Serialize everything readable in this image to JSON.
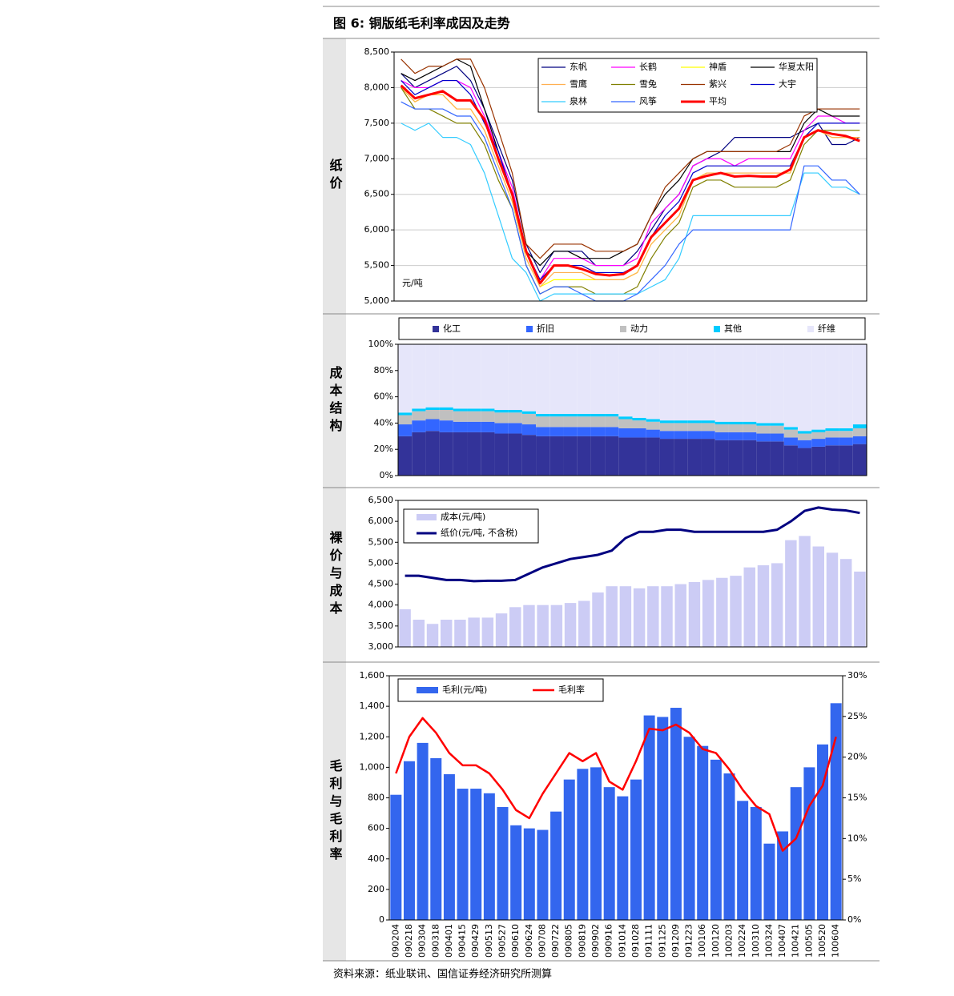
{
  "header": {
    "title": "图 6: 铜版纸毛利率成因及走势"
  },
  "chart_data": [
    {
      "type": "line",
      "title": "纸价",
      "y_label": "元/吨",
      "grid": true,
      "ylim": [
        5000,
        8500
      ],
      "yticks": [
        {
          "value": 5000,
          "label": "5,000"
        },
        {
          "value": 5500,
          "label": "5,500"
        },
        {
          "value": 6000,
          "label": "6,000"
        },
        {
          "value": 6500,
          "label": "6,500"
        },
        {
          "value": 7000,
          "label": "7,000"
        },
        {
          "value": 7500,
          "label": "7,500"
        },
        {
          "value": 8000,
          "label": "8,000"
        },
        {
          "value": 8500,
          "label": "8,500"
        }
      ],
      "series": [
        {
          "name": "东帆",
          "color": "#000080",
          "values": [
            8200,
            8000,
            8100,
            8200,
            8300,
            8100,
            7700,
            7200,
            6700,
            5800,
            5400,
            5700,
            5700,
            5700,
            5500,
            5500,
            5500,
            5700,
            6000,
            6300,
            6500,
            6900,
            7000,
            7100,
            7300,
            7300,
            7300,
            7300,
            7300,
            7400,
            7500,
            7200,
            7200,
            7300
          ]
        },
        {
          "name": "长鹤",
          "color": "#ff00ff",
          "values": [
            8100,
            8000,
            8000,
            8100,
            8100,
            8000,
            7600,
            7100,
            6600,
            5700,
            5300,
            5600,
            5600,
            5600,
            5500,
            5500,
            5500,
            5600,
            6100,
            6300,
            6500,
            6900,
            7000,
            7000,
            6900,
            7000,
            7000,
            7000,
            7000,
            7400,
            7600,
            7600,
            7500,
            7500
          ]
        },
        {
          "name": "神盾",
          "color": "#ffff00",
          "values": [
            8000,
            7800,
            7900,
            7900,
            7700,
            7700,
            7400,
            6900,
            6400,
            5600,
            5200,
            5300,
            5300,
            5300,
            5300,
            5300,
            5300,
            5400,
            5800,
            6000,
            6200,
            6700,
            6800,
            6800,
            6800,
            6800,
            6800,
            6800,
            6800,
            7300,
            7400,
            7300,
            7300,
            7300
          ]
        },
        {
          "name": "华夏太阳",
          "color": "#000000",
          "values": [
            8200,
            8100,
            8200,
            8300,
            8400,
            8300,
            7700,
            7100,
            6500,
            5700,
            5500,
            5700,
            5700,
            5600,
            5600,
            5600,
            5700,
            5800,
            6200,
            6500,
            6700,
            7000,
            7100,
            7100,
            7100,
            7100,
            7100,
            7100,
            7100,
            7500,
            7700,
            7600,
            7600,
            7600
          ]
        },
        {
          "name": "雪鹰",
          "color": "#ffb050",
          "values": [
            8000,
            7800,
            7900,
            7900,
            7700,
            7700,
            7400,
            6900,
            6400,
            5600,
            5200,
            5400,
            5400,
            5400,
            5300,
            5300,
            5300,
            5400,
            5800,
            6000,
            6200,
            6700,
            6800,
            6800,
            6800,
            6800,
            6800,
            6800,
            6800,
            7300,
            7400,
            7300,
            7300,
            7300
          ]
        },
        {
          "name": "雪兔",
          "color": "#808000",
          "values": [
            8000,
            7700,
            7700,
            7600,
            7500,
            7500,
            7200,
            6700,
            6300,
            5500,
            5100,
            5200,
            5200,
            5200,
            5100,
            5100,
            5100,
            5200,
            5600,
            5900,
            6100,
            6600,
            6700,
            6700,
            6600,
            6600,
            6600,
            6600,
            6700,
            7200,
            7400,
            7400,
            7400,
            7400
          ]
        },
        {
          "name": "紫兴",
          "color": "#993300",
          "values": [
            8400,
            8200,
            8300,
            8300,
            8400,
            8400,
            8000,
            7400,
            6800,
            5800,
            5600,
            5800,
            5800,
            5800,
            5700,
            5700,
            5700,
            5800,
            6200,
            6600,
            6800,
            7000,
            7100,
            7100,
            7100,
            7100,
            7100,
            7100,
            7200,
            7600,
            7700,
            7700,
            7700,
            7700
          ]
        },
        {
          "name": "大宇",
          "color": "#0000cc",
          "values": [
            8100,
            7900,
            8000,
            8100,
            8100,
            7900,
            7500,
            7100,
            6500,
            5700,
            5300,
            5500,
            5500,
            5500,
            5400,
            5400,
            5400,
            5500,
            5900,
            6200,
            6400,
            6800,
            6900,
            6900,
            6900,
            6900,
            6900,
            6900,
            6900,
            7300,
            7500,
            7500,
            7500,
            7500
          ]
        },
        {
          "name": "泉林",
          "color": "#33ccff",
          "values": [
            7500,
            7400,
            7500,
            7300,
            7300,
            7200,
            6800,
            6200,
            5600,
            5400,
            5000,
            5100,
            5100,
            5100,
            5100,
            5100,
            5100,
            5100,
            5200,
            5300,
            5600,
            6200,
            6200,
            6200,
            6200,
            6200,
            6200,
            6200,
            6200,
            6800,
            6800,
            6600,
            6600,
            6500
          ]
        },
        {
          "name": "风筝",
          "color": "#3366ff",
          "values": [
            7800,
            7700,
            7700,
            7700,
            7600,
            7600,
            7300,
            6800,
            6300,
            5500,
            5100,
            5200,
            5200,
            5100,
            5000,
            5000,
            5000,
            5100,
            5300,
            5500,
            5800,
            6000,
            6000,
            6000,
            6000,
            6000,
            6000,
            6000,
            6000,
            6900,
            6900,
            6700,
            6700,
            6500
          ]
        },
        {
          "name": "平均",
          "color": "#ff0000",
          "width": 3,
          "values": [
            8030,
            7850,
            7900,
            7950,
            7820,
            7820,
            7550,
            7000,
            6500,
            5700,
            5250,
            5500,
            5500,
            5450,
            5380,
            5360,
            5380,
            5500,
            5900,
            6100,
            6300,
            6700,
            6760,
            6800,
            6750,
            6760,
            6750,
            6750,
            6850,
            7300,
            7400,
            7350,
            7320,
            7250
          ]
        }
      ]
    },
    {
      "type": "stacked_bar",
      "title": "成本结构",
      "ylim": [
        0,
        100
      ],
      "yticks": [
        {
          "value": 0,
          "label": "0%"
        },
        {
          "value": 20,
          "label": "20%"
        },
        {
          "value": 40,
          "label": "40%"
        },
        {
          "value": 60,
          "label": "60%"
        },
        {
          "value": 80,
          "label": "80%"
        },
        {
          "value": 100,
          "label": "100%"
        }
      ],
      "series": [
        {
          "name": "化工",
          "color": "#333399",
          "values": [
            30,
            33,
            34,
            33,
            33,
            33,
            33,
            32,
            32,
            31,
            30,
            30,
            30,
            30,
            30,
            30,
            29,
            29,
            29,
            28,
            28,
            28,
            28,
            27,
            27,
            27,
            26,
            26,
            23,
            21,
            22,
            23,
            23,
            24
          ]
        },
        {
          "name": "折旧",
          "color": "#3366ff",
          "values": [
            9,
            9,
            9,
            9,
            8,
            8,
            8,
            8,
            8,
            8,
            7,
            7,
            7,
            7,
            7,
            7,
            7,
            7,
            6,
            6,
            6,
            6,
            6,
            6,
            6,
            6,
            6,
            6,
            6,
            6,
            6,
            6,
            6,
            6
          ]
        },
        {
          "name": "动力",
          "color": "#c0c0c0",
          "values": [
            7,
            7,
            7,
            8,
            8,
            8,
            8,
            8,
            8,
            8,
            8,
            8,
            8,
            8,
            8,
            8,
            7,
            6,
            6,
            6,
            6,
            6,
            6,
            6,
            6,
            6,
            6,
            6,
            6,
            5,
            5,
            5,
            5,
            6
          ]
        },
        {
          "name": "其他",
          "color": "#00ccff",
          "values": [
            2,
            2,
            2,
            2,
            2,
            2,
            2,
            2,
            2,
            2,
            2,
            2,
            2,
            2,
            2,
            2,
            2,
            2,
            2,
            2,
            2,
            2,
            2,
            2,
            2,
            2,
            2,
            2,
            2,
            2,
            2,
            2,
            2,
            3
          ]
        },
        {
          "name": "纤维",
          "color": "#e6e6fa",
          "values": [
            52,
            49,
            48,
            48,
            49,
            49,
            49,
            50,
            50,
            51,
            53,
            53,
            53,
            53,
            53,
            53,
            55,
            56,
            57,
            58,
            58,
            58,
            58,
            59,
            59,
            59,
            60,
            60,
            63,
            66,
            65,
            64,
            64,
            61
          ]
        }
      ]
    },
    {
      "type": "combo",
      "title": "裸价与成本",
      "ylim": [
        3000,
        6500
      ],
      "yticks": [
        {
          "value": 3000,
          "label": "3,000"
        },
        {
          "value": 3500,
          "label": "3,500"
        },
        {
          "value": 4000,
          "label": "4,000"
        },
        {
          "value": 4500,
          "label": "4,500"
        },
        {
          "value": 5000,
          "label": "5,000"
        },
        {
          "value": 5500,
          "label": "5,500"
        },
        {
          "value": 6000,
          "label": "6,000"
        },
        {
          "value": 6500,
          "label": "6,500"
        }
      ],
      "series": [
        {
          "name": "成本(元/吨)",
          "type": "bar",
          "color": "#ccccf5",
          "values": [
            3900,
            3650,
            3550,
            3650,
            3650,
            3700,
            3700,
            3800,
            3950,
            4000,
            4000,
            4000,
            4050,
            4100,
            4300,
            4450,
            4450,
            4400,
            4450,
            4450,
            4500,
            4550,
            4600,
            4650,
            4700,
            4900,
            4950,
            5000,
            5550,
            5650,
            5400,
            5250,
            5100,
            4800
          ]
        },
        {
          "name": "纸价(元/吨, 不含税)",
          "type": "line",
          "color": "#000080",
          "width": 3,
          "values": [
            4700,
            4700,
            4650,
            4600,
            4600,
            4570,
            4580,
            4580,
            4600,
            4750,
            4900,
            5000,
            5100,
            5150,
            5200,
            5300,
            5600,
            5750,
            5750,
            5800,
            5800,
            5750,
            5750,
            5750,
            5750,
            5750,
            5750,
            5800,
            6000,
            6250,
            6330,
            6280,
            6260,
            6200
          ]
        }
      ]
    },
    {
      "type": "combo",
      "title": "毛利与毛利率",
      "categories": [
        "090204",
        "090218",
        "090304",
        "090318",
        "090401",
        "090415",
        "090429",
        "090513",
        "090527",
        "090610",
        "090624",
        "090708",
        "090722",
        "090805",
        "090819",
        "090902",
        "090916",
        "091014",
        "091028",
        "091111",
        "091125",
        "091209",
        "091223",
        "100106",
        "100120",
        "100203",
        "100224",
        "100310",
        "100324",
        "100407",
        "100421",
        "100505",
        "100520",
        "100604"
      ],
      "ylim": [
        0,
        1600
      ],
      "yticks": [
        0,
        200,
        400,
        600,
        800,
        {
          "value": 1000,
          "label": "1,000"
        },
        {
          "value": 1200,
          "label": "1,200"
        },
        {
          "value": 1400,
          "label": "1,400"
        },
        {
          "value": 1600,
          "label": "1,600"
        }
      ],
      "y2lim": [
        0,
        30
      ],
      "y2ticks": [
        {
          "value": 0,
          "label": "0%"
        },
        {
          "value": 5,
          "label": "5%"
        },
        {
          "value": 10,
          "label": "10%"
        },
        {
          "value": 15,
          "label": "15%"
        },
        {
          "value": 20,
          "label": "20%"
        },
        {
          "value": 25,
          "label": "25%"
        },
        {
          "value": 30,
          "label": "30%"
        }
      ],
      "series": [
        {
          "name": "毛利(元/吨)",
          "type": "bar",
          "color": "#3366ee",
          "values": [
            820,
            1040,
            1160,
            1060,
            955,
            860,
            860,
            830,
            740,
            620,
            600,
            590,
            710,
            920,
            990,
            1000,
            870,
            810,
            920,
            1340,
            1330,
            1390,
            1200,
            1140,
            1050,
            960,
            780,
            740,
            500,
            580,
            870,
            1000,
            1150,
            1420
          ]
        },
        {
          "name": "毛利率",
          "type": "line",
          "axis": "y2",
          "color": "#ff0000",
          "width": 2.5,
          "values": [
            18,
            22.5,
            24.8,
            23,
            20.5,
            19,
            19,
            18,
            16,
            13.5,
            12.5,
            15.5,
            18,
            20.5,
            19.5,
            20.5,
            17,
            16,
            19.5,
            23.5,
            23.3,
            24,
            23,
            21,
            20.5,
            18.5,
            16,
            14,
            13,
            8.5,
            10,
            14,
            16.5,
            22.5
          ]
        }
      ]
    }
  ],
  "footer": {
    "source": "资料来源：纸业联讯、国信证券经济研究所测算"
  }
}
